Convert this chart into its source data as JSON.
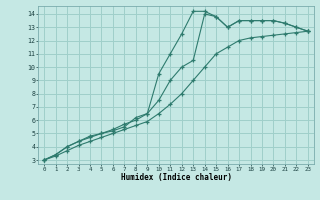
{
  "xlabel": "Humidex (Indice chaleur)",
  "bg_color": "#c5e8e4",
  "grid_color": "#9fcfca",
  "line_color": "#2e7b6e",
  "xlim": [
    -0.5,
    23.5
  ],
  "ylim": [
    2.7,
    14.6
  ],
  "xticks": [
    0,
    1,
    2,
    3,
    4,
    5,
    6,
    7,
    8,
    9,
    10,
    11,
    12,
    13,
    14,
    15,
    16,
    17,
    18,
    19,
    20,
    21,
    22,
    23
  ],
  "yticks": [
    3,
    4,
    5,
    6,
    7,
    8,
    9,
    10,
    11,
    12,
    13,
    14
  ],
  "line1_x": [
    0,
    1,
    2,
    3,
    4,
    5,
    6,
    7,
    8,
    9,
    10,
    11,
    12,
    13,
    14,
    15,
    16,
    17,
    18,
    19,
    20,
    21,
    22,
    23
  ],
  "line1_y": [
    3,
    3.4,
    4.0,
    4.4,
    4.7,
    5.0,
    5.3,
    5.7,
    6.0,
    6.5,
    9.5,
    11.0,
    12.5,
    14.2,
    14.2,
    13.8,
    13.0,
    13.5,
    13.5,
    13.5,
    13.5,
    13.3,
    13.0,
    12.7
  ],
  "line2_x": [
    0,
    1,
    2,
    3,
    4,
    5,
    6,
    7,
    8,
    9,
    10,
    11,
    12,
    13,
    14,
    15,
    16,
    17,
    18,
    19,
    20,
    21,
    22,
    23
  ],
  "line2_y": [
    3,
    3.4,
    4.0,
    4.4,
    4.8,
    5.0,
    5.2,
    5.5,
    6.2,
    6.5,
    7.5,
    9.0,
    10.0,
    10.5,
    14.0,
    13.8,
    13.0,
    13.5,
    13.5,
    13.5,
    13.5,
    13.3,
    13.0,
    12.7
  ],
  "line3_x": [
    0,
    1,
    2,
    3,
    4,
    5,
    6,
    7,
    8,
    9,
    10,
    11,
    12,
    13,
    14,
    15,
    16,
    17,
    18,
    19,
    20,
    21,
    22,
    23
  ],
  "line3_y": [
    3,
    3.3,
    3.7,
    4.1,
    4.4,
    4.7,
    5.0,
    5.3,
    5.6,
    5.9,
    6.5,
    7.2,
    8.0,
    9.0,
    10.0,
    11.0,
    11.5,
    12.0,
    12.2,
    12.3,
    12.4,
    12.5,
    12.6,
    12.7
  ]
}
